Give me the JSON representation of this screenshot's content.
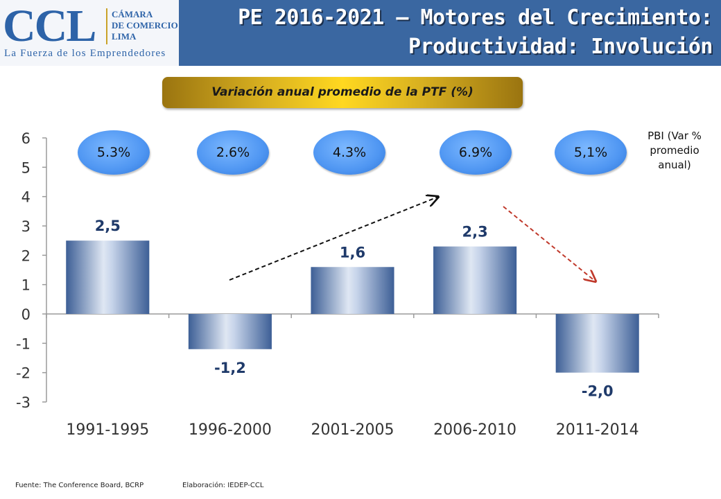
{
  "header": {
    "logo_text": "CCL",
    "logo_sub": [
      "CÁMARA",
      "DE COMERCIO",
      "LIMA"
    ],
    "logo_tagline": "La Fuerza de los Emprendedores",
    "title_line1": "PE 2016-2021 – Motores del Crecimiento:",
    "title_line2": "Productividad: Involución"
  },
  "colors": {
    "title_bar": "#3a67a1",
    "bar": "#4a6ea8",
    "ellipse": "#4f96f2",
    "subtitle_gold": "#d8b020"
  },
  "pbi": {
    "label_lines": [
      "PBI (Var %",
      "promedio",
      "anual)"
    ],
    "values": [
      "5.3%",
      "2.6%",
      "4.3%",
      "6.9%",
      "5,1%"
    ]
  },
  "chart_data": {
    "type": "bar",
    "title": "Variación anual promedio de la PTF (%)",
    "categories": [
      "1991-1995",
      "1996-2000",
      "2001-2005",
      "2006-2010",
      "2011-2014"
    ],
    "values": [
      2.5,
      -1.2,
      1.6,
      2.3,
      -2.0
    ],
    "value_labels": [
      "2,5",
      "-1,2",
      "1,6",
      "2,3",
      "-2,0"
    ],
    "y_ticks": [
      "-3",
      "-2",
      "-1",
      "0",
      "1",
      "2",
      "3",
      "4",
      "5",
      "6"
    ],
    "ylim": [
      -3,
      6
    ],
    "grid": false,
    "legend": "none",
    "trend_arrows": [
      {
        "from_category": "1996-2000",
        "to_category": "2006-2010",
        "direction": "up",
        "color": "#111111"
      },
      {
        "from_category": "2006-2010",
        "to_category": "2011-2014",
        "direction": "down",
        "color": "#c0392b"
      }
    ]
  },
  "footer": {
    "source": "Fuente: The Conference Board, BCRP",
    "elaboration": "Elaboración: IEDEP-CCL"
  }
}
